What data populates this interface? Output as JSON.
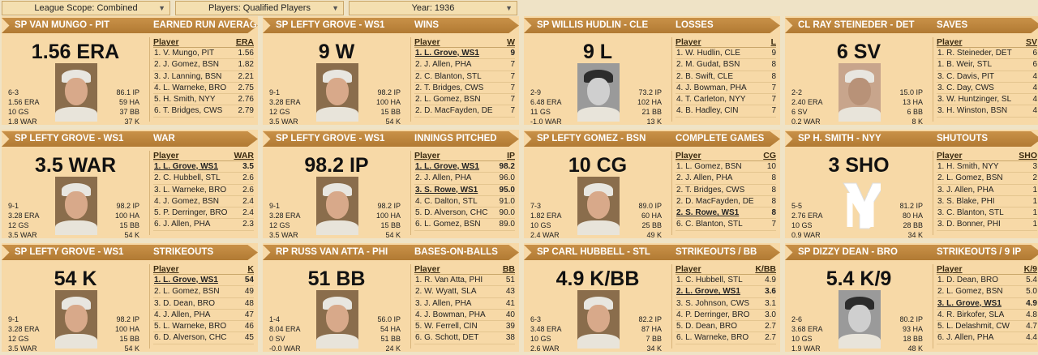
{
  "filters": [
    {
      "label": "League Scope: Combined"
    },
    {
      "label": "Players: Qualified Players"
    },
    {
      "label": "Year: 1936"
    }
  ],
  "panels": [
    {
      "player_title": "SP VAN MUNGO - PIT",
      "stat_title": "EARNED RUN AVERAGE",
      "big": "1.56 ERA",
      "left": [
        "6-3",
        "1.56 ERA",
        "10 GS",
        "1.8 WAR"
      ],
      "right": [
        "86.1 IP",
        "59 HA",
        "37 BB",
        "37 K"
      ],
      "col1": "Player",
      "col2": "ERA",
      "photo": "color",
      "rows": [
        [
          "1. V. Mungo, PIT",
          "1.56"
        ],
        [
          "2. J. Gomez, BSN",
          "1.82"
        ],
        [
          "3. J. Lanning, BSN",
          "2.21"
        ],
        [
          "4. L. Warneke, BRO",
          "2.75"
        ],
        [
          "5. H. Smith, NYY",
          "2.76"
        ],
        [
          "6. T. Bridges, CWS",
          "2.79"
        ]
      ],
      "hl": -1
    },
    {
      "player_title": "SP LEFTY GROVE - WS1",
      "stat_title": "WINS",
      "big": "9 W",
      "left": [
        "9-1",
        "3.28 ERA",
        "12 GS",
        "3.5 WAR"
      ],
      "right": [
        "98.2 IP",
        "100 HA",
        "15 BB",
        "54 K"
      ],
      "col1": "Player",
      "col2": "W",
      "photo": "color",
      "rows": [
        [
          "1. L. Grove, WS1",
          "9"
        ],
        [
          "2. J. Allen, PHA",
          "7"
        ],
        [
          "2. C. Blanton, STL",
          "7"
        ],
        [
          "2. T. Bridges, CWS",
          "7"
        ],
        [
          "2. L. Gomez, BSN",
          "7"
        ],
        [
          "2. D. MacFayden, DE",
          "7"
        ]
      ],
      "hl": 0
    },
    {
      "player_title": "SP WILLIS HUDLIN - CLE",
      "stat_title": "LOSSES",
      "big": "9 L",
      "left": [
        "2-9",
        "6.48 ERA",
        "11 GS",
        "-1.0 WAR"
      ],
      "right": [
        "73.2 IP",
        "102 HA",
        "21 BB",
        "13 K"
      ],
      "col1": "Player",
      "col2": "L",
      "photo": "bw",
      "rows": [
        [
          "1. W. Hudlin, CLE",
          "9"
        ],
        [
          "2. M. Gudat, BSN",
          "8"
        ],
        [
          "2. B. Swift, CLE",
          "8"
        ],
        [
          "4. J. Bowman, PHA",
          "7"
        ],
        [
          "4. T. Carleton, NYY",
          "7"
        ],
        [
          "4. B. Hadley, CIN",
          "7"
        ]
      ],
      "hl": -1
    },
    {
      "player_title": "CL RAY STEINEDER - DET",
      "stat_title": "SAVES",
      "big": "6 SV",
      "left": [
        "2-2",
        "2.40 ERA",
        "6 SV",
        "0.2 WAR"
      ],
      "right": [
        "15.0 IP",
        "13 HA",
        "6 BB",
        "8 K"
      ],
      "col1": "Player",
      "col2": "SV",
      "photo": "sepia",
      "rows": [
        [
          "1. R. Steineder, DET",
          "6"
        ],
        [
          "1. B. Weir, STL",
          "6"
        ],
        [
          "3. C. Davis, PIT",
          "4"
        ],
        [
          "3. C. Day, CWS",
          "4"
        ],
        [
          "3. W. Huntzinger, SL",
          "4"
        ],
        [
          "3. H. Winston, BSN",
          "4"
        ]
      ],
      "hl": -1
    },
    {
      "player_title": "SP LEFTY GROVE - WS1",
      "stat_title": "WAR",
      "big": "3.5 WAR",
      "left": [
        "9-1",
        "3.28 ERA",
        "12 GS",
        "3.5 WAR"
      ],
      "right": [
        "98.2 IP",
        "100 HA",
        "15 BB",
        "54 K"
      ],
      "col1": "Player",
      "col2": "WAR",
      "photo": "color",
      "rows": [
        [
          "1. L. Grove, WS1",
          "3.5"
        ],
        [
          "2. C. Hubbell, STL",
          "2.6"
        ],
        [
          "3. L. Warneke, BRO",
          "2.6"
        ],
        [
          "4. J. Gomez, BSN",
          "2.4"
        ],
        [
          "5. P. Derringer, BRO",
          "2.4"
        ],
        [
          "6. J. Allen, PHA",
          "2.3"
        ]
      ],
      "hl": 0
    },
    {
      "player_title": "SP LEFTY GROVE - WS1",
      "stat_title": "INNINGS PITCHED",
      "big": "98.2 IP",
      "left": [
        "9-1",
        "3.28 ERA",
        "12 GS",
        "3.5 WAR"
      ],
      "right": [
        "98.2 IP",
        "100 HA",
        "15 BB",
        "54 K"
      ],
      "col1": "Player",
      "col2": "IP",
      "photo": "color",
      "rows": [
        [
          "1. L. Grove, WS1",
          "98.2"
        ],
        [
          "2. J. Allen, PHA",
          "96.0"
        ],
        [
          "3. S. Rowe, WS1",
          "95.0"
        ],
        [
          "4. C. Dalton, STL",
          "91.0"
        ],
        [
          "5. D. Alverson, CHC",
          "90.0"
        ],
        [
          "6. L. Gomez, BSN",
          "89.0"
        ]
      ],
      "hl": 0,
      "hl2": 2
    },
    {
      "player_title": "SP LEFTY GOMEZ - BSN",
      "stat_title": "COMPLETE GAMES",
      "big": "10 CG",
      "left": [
        "7-3",
        "1.82 ERA",
        "10 GS",
        "2.4 WAR"
      ],
      "right": [
        "89.0 IP",
        "60 HA",
        "25 BB",
        "49 K"
      ],
      "col1": "Player",
      "col2": "CG",
      "photo": "color",
      "rows": [
        [
          "1. L. Gomez, BSN",
          "10"
        ],
        [
          "2. J. Allen, PHA",
          "8"
        ],
        [
          "2. T. Bridges, CWS",
          "8"
        ],
        [
          "2. D. MacFayden, DE",
          "8"
        ],
        [
          "2. S. Rowe, WS1",
          "8"
        ],
        [
          "6. C. Blanton, STL",
          "7"
        ]
      ],
      "hl": 4
    },
    {
      "player_title": "SP H. SMITH - NYY",
      "stat_title": "SHUTOUTS",
      "big": "3 SHO",
      "left": [
        "5-5",
        "2.76 ERA",
        "10 GS",
        "0.9 WAR"
      ],
      "right": [
        "81.2 IP",
        "80 HA",
        "28 BB",
        "34 K"
      ],
      "col1": "Player",
      "col2": "SHO",
      "photo": "logo",
      "rows": [
        [
          "1. H. Smith, NYY",
          "3"
        ],
        [
          "2. L. Gomez, BSN",
          "2"
        ],
        [
          "3. J. Allen, PHA",
          "1"
        ],
        [
          "3. S. Blake, PHI",
          "1"
        ],
        [
          "3. C. Blanton, STL",
          "1"
        ],
        [
          "3. D. Bonner, PHI",
          "1"
        ]
      ],
      "hl": -1
    },
    {
      "player_title": "SP LEFTY GROVE - WS1",
      "stat_title": "STRIKEOUTS",
      "big": "54 K",
      "left": [
        "9-1",
        "3.28 ERA",
        "12 GS",
        "3.5 WAR"
      ],
      "right": [
        "98.2 IP",
        "100 HA",
        "15 BB",
        "54 K"
      ],
      "col1": "Player",
      "col2": "K",
      "photo": "color",
      "rows": [
        [
          "1. L. Grove, WS1",
          "54"
        ],
        [
          "2. L. Gomez, BSN",
          "49"
        ],
        [
          "3. D. Dean, BRO",
          "48"
        ],
        [
          "4. J. Allen, PHA",
          "47"
        ],
        [
          "5. L. Warneke, BRO",
          "46"
        ],
        [
          "6. D. Alverson, CHC",
          "45"
        ]
      ],
      "hl": 0
    },
    {
      "player_title": "RP RUSS VAN ATTA - PHI",
      "stat_title": "BASES-ON-BALLS",
      "big": "51 BB",
      "left": [
        "1-4",
        "8.04 ERA",
        "0 SV",
        "-0.0 WAR"
      ],
      "right": [
        "56.0 IP",
        "54 HA",
        "51 BB",
        "24 K"
      ],
      "col1": "Player",
      "col2": "BB",
      "photo": "color",
      "rows": [
        [
          "1. R. Van Atta, PHI",
          "51"
        ],
        [
          "2. W. Wyatt, SLA",
          "43"
        ],
        [
          "3. J. Allen, PHA",
          "41"
        ],
        [
          "4. J. Bowman, PHA",
          "40"
        ],
        [
          "5. W. Ferrell, CIN",
          "39"
        ],
        [
          "6. G. Schott, DET",
          "38"
        ]
      ],
      "hl": -1
    },
    {
      "player_title": "SP CARL HUBBELL - STL",
      "stat_title": "STRIKEOUTS / BB",
      "big": "4.9 K/BB",
      "left": [
        "6-3",
        "3.48 ERA",
        "10 GS",
        "2.6 WAR"
      ],
      "right": [
        "82.2 IP",
        "87 HA",
        "7 BB",
        "34 K"
      ],
      "col1": "Player",
      "col2": "K/BB",
      "photo": "color",
      "rows": [
        [
          "1. C. Hubbell, STL",
          "4.9"
        ],
        [
          "2. L. Grove, WS1",
          "3.6"
        ],
        [
          "3. S. Johnson, CWS",
          "3.1"
        ],
        [
          "4. P. Derringer, BRO",
          "3.0"
        ],
        [
          "5. D. Dean, BRO",
          "2.7"
        ],
        [
          "6. L. Warneke, BRO",
          "2.7"
        ]
      ],
      "hl": 1
    },
    {
      "player_title": "SP DIZZY DEAN - BRO",
      "stat_title": "STRIKEOUTS / 9 IP",
      "big": "5.4 K/9",
      "left": [
        "2-6",
        "3.68 ERA",
        "10 GS",
        "1.9 WAR"
      ],
      "right": [
        "80.2 IP",
        "93 HA",
        "18 BB",
        "48 K"
      ],
      "col1": "Player",
      "col2": "K/9",
      "photo": "bw",
      "rows": [
        [
          "1. D. Dean, BRO",
          "5.4"
        ],
        [
          "2. L. Gomez, BSN",
          "5.0"
        ],
        [
          "3. L. Grove, WS1",
          "4.9"
        ],
        [
          "4. R. Birkofer, SLA",
          "4.8"
        ],
        [
          "5. L. Delashmit, CW",
          "4.7"
        ],
        [
          "6. J. Allen, PHA",
          "4.4"
        ]
      ],
      "hl": 2
    }
  ]
}
